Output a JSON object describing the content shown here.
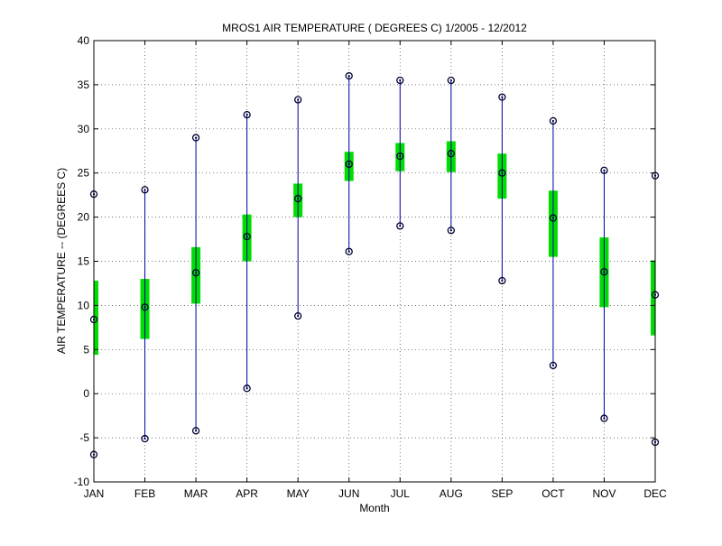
{
  "chart_data": {
    "type": "box-range",
    "title": "MROS1  AIR TEMPERATURE ( DEGREES C) 1/2005 - 12/2012",
    "xlabel": "Month",
    "ylabel": "AIR TEMPERATURE -- (DEGREES C)",
    "ylim": [
      -10,
      40
    ],
    "yticks": [
      -10,
      -5,
      0,
      5,
      10,
      15,
      20,
      25,
      30,
      35,
      40
    ],
    "grid": true,
    "categories": [
      "JAN",
      "FEB",
      "MAR",
      "APR",
      "MAY",
      "JUN",
      "JUL",
      "AUG",
      "SEP",
      "OCT",
      "NOV",
      "DEC"
    ],
    "series": [
      {
        "name": "max",
        "values": [
          22.6,
          23.1,
          29.0,
          31.6,
          33.3,
          36.0,
          35.5,
          35.5,
          33.6,
          30.9,
          25.3,
          24.7
        ]
      },
      {
        "name": "q3",
        "values": [
          12.8,
          13.0,
          16.6,
          20.3,
          23.8,
          27.4,
          28.4,
          28.6,
          27.2,
          23.0,
          17.7,
          15.1
        ]
      },
      {
        "name": "median",
        "values": [
          8.4,
          9.8,
          13.7,
          17.8,
          22.1,
          26.0,
          26.9,
          27.2,
          25.0,
          19.9,
          13.8,
          11.2
        ]
      },
      {
        "name": "q1",
        "values": [
          4.4,
          6.2,
          10.2,
          15.0,
          20.0,
          24.1,
          25.2,
          25.1,
          22.1,
          15.5,
          9.8,
          6.6
        ]
      },
      {
        "name": "min",
        "values": [
          -6.9,
          -5.1,
          -4.2,
          0.6,
          8.8,
          16.1,
          19.0,
          18.5,
          12.8,
          3.2,
          -2.8,
          -5.5
        ]
      }
    ],
    "colors": {
      "whisker": "#0000aa",
      "box": "#00dd00",
      "marker": "#000033",
      "grid": "#444444"
    }
  }
}
